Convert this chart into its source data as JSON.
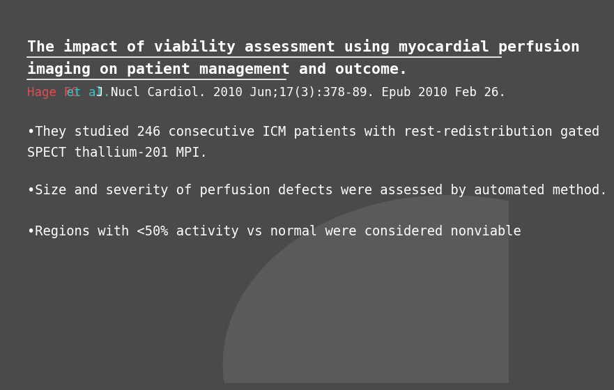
{
  "bg_color_main": "#4a4a4a",
  "bg_color_circle": "#5a5a5a",
  "title_line1": "The impact of viability assessment using myocardial perfusion",
  "title_line2": "imaging on patient management and outcome.",
  "title_color": "#ffffff",
  "title_fontsize": 15.5,
  "author_hage": "Hage FG",
  "author_hage_color": "#e05050",
  "author_etal": " et al. ",
  "author_etal_color": "#40c0c0",
  "author_rest": "J Nucl Cardiol. 2010 Jun;17(3):378-89. Epub 2010 Feb 26.",
  "author_rest_color": "#ffffff",
  "author_fontsize": 12.5,
  "bullet1a": "•They studied 246 consecutive ICM patients with rest-redistribution gated",
  "bullet1b": "SPECT thallium-201 MPI.",
  "bullet2": "•Size and severity of perfusion defects were assessed by automated method.",
  "bullet3": "•Regions with <50% activity vs normal were considered nonviable",
  "bullet_color": "#ffffff",
  "bullet_fontsize": 13.5
}
